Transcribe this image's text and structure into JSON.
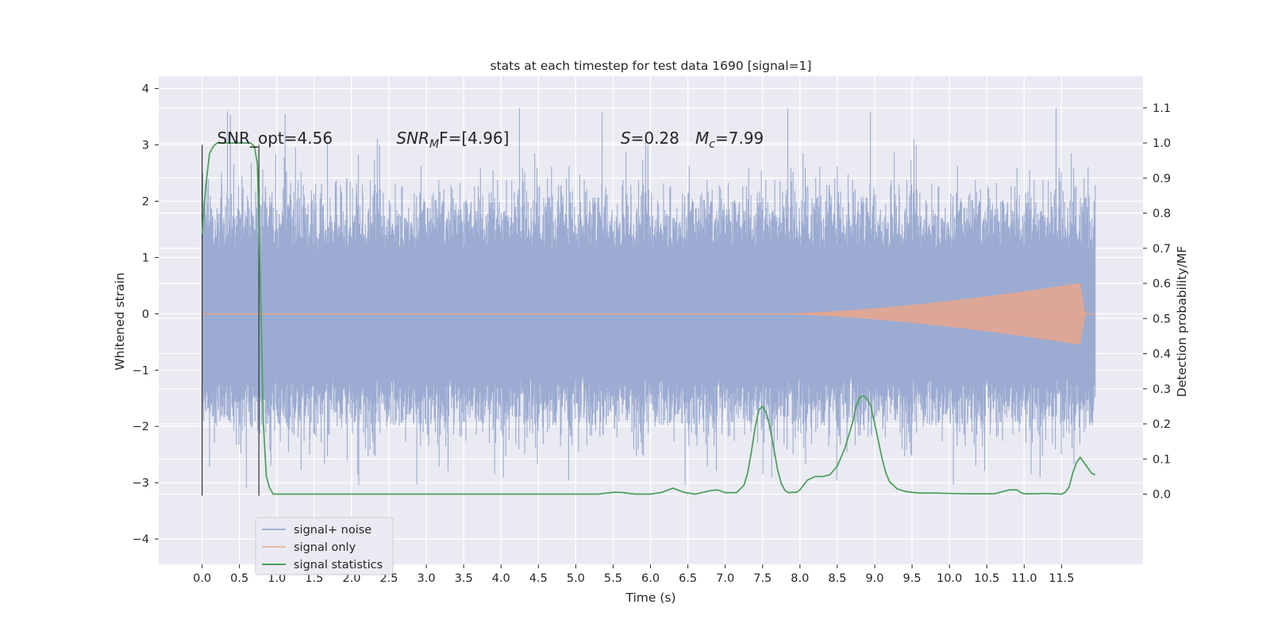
{
  "chart_data": {
    "type": "line",
    "title": "stats at each timestep for test data 1690 [signal=1]",
    "xlabel": "Time (s)",
    "ylabel": "Whitened strain",
    "ylabel_right": "Detection probability/MF",
    "xlim": [
      -0.58,
      12.59
    ],
    "ylim": [
      -4.45,
      4.22
    ],
    "ylim_right": [
      -0.2,
      1.19
    ],
    "x_ticks": [
      "0.0",
      "0.5",
      "1.0",
      "1.5",
      "2.0",
      "2.5",
      "3.0",
      "3.5",
      "4.0",
      "4.5",
      "5.0",
      "5.5",
      "6.0",
      "6.5",
      "7.0",
      "7.5",
      "8.0",
      "8.5",
      "9.0",
      "9.5",
      "10.0",
      "10.5",
      "11.0",
      "11.5"
    ],
    "y_ticks": [
      "4",
      "3",
      "2",
      "1",
      "0",
      "−1",
      "−2",
      "−3",
      "−4"
    ],
    "y_ticks_right": [
      "1.1",
      "1.0",
      "0.9",
      "0.8",
      "0.7",
      "0.6",
      "0.5",
      "0.4",
      "0.3",
      "0.2",
      "0.1",
      "0.0"
    ],
    "grid": true,
    "legend_position": "lower-left",
    "annotations": [
      {
        "text": "SNR_opt=4.56",
        "x": 0.2
      },
      {
        "text": "SNR",
        "sub": "M",
        "tail": "F=[4.96]",
        "italic": true,
        "x": 2.6
      },
      {
        "text": "S",
        "tail": "=0.28",
        "italic": true,
        "x": 5.6
      },
      {
        "text": "M",
        "sub": "c",
        "tail": "=7.99",
        "italic": true,
        "x": 6.6
      }
    ],
    "vlines": [
      0.0,
      0.76
    ],
    "series": [
      {
        "name": "signal+ noise",
        "color": "#8da0cb",
        "kind": "noise",
        "x_range": [
          0.0,
          11.95
        ],
        "typical_amplitude": 1.6,
        "max": 3.86,
        "min": -3.62
      },
      {
        "name": "signal only",
        "color": "#e7a68d",
        "kind": "chirp",
        "x_range": [
          0.0,
          11.95
        ],
        "peak_time": 11.75,
        "peak_amplitude": 0.55
      },
      {
        "name": "signal statistics",
        "color": "#4ea05d",
        "kind": "line",
        "axis": "right",
        "x": [
          0.0,
          0.05,
          0.1,
          0.15,
          0.2,
          0.3,
          0.4,
          0.5,
          0.6,
          0.65,
          0.7,
          0.74,
          0.78,
          0.82,
          0.86,
          0.9,
          0.95,
          1.0,
          1.5,
          2.0,
          3.0,
          4.0,
          5.0,
          5.3,
          5.5,
          5.6,
          5.8,
          6.0,
          6.15,
          6.3,
          6.45,
          6.6,
          6.8,
          6.9,
          7.0,
          7.15,
          7.25,
          7.3,
          7.35,
          7.4,
          7.45,
          7.5,
          7.55,
          7.6,
          7.65,
          7.7,
          7.75,
          7.8,
          7.85,
          7.9,
          7.95,
          8.0,
          8.1,
          8.2,
          8.3,
          8.4,
          8.5,
          8.6,
          8.7,
          8.75,
          8.8,
          8.85,
          8.9,
          8.95,
          9.0,
          9.05,
          9.1,
          9.15,
          9.2,
          9.3,
          9.4,
          9.5,
          9.6,
          9.8,
          10.0,
          10.3,
          10.6,
          10.8,
          10.9,
          10.95,
          11.0,
          11.1,
          11.3,
          11.5,
          11.55,
          11.6,
          11.65,
          11.7,
          11.75,
          11.8,
          11.85,
          11.9,
          11.95
        ],
        "y": [
          0.74,
          0.88,
          0.97,
          0.99,
          1.0,
          1.0,
          1.0,
          1.0,
          1.0,
          1.0,
          0.99,
          0.94,
          0.6,
          0.2,
          0.05,
          0.02,
          0.0,
          0.0,
          0.0,
          0.0,
          0.0,
          0.0,
          0.0,
          0.0,
          0.005,
          0.005,
          0.0,
          0.0,
          0.005,
          0.017,
          0.005,
          0.0,
          0.01,
          0.012,
          0.004,
          0.004,
          0.025,
          0.06,
          0.12,
          0.19,
          0.24,
          0.25,
          0.23,
          0.19,
          0.13,
          0.07,
          0.03,
          0.01,
          0.004,
          0.005,
          0.005,
          0.012,
          0.04,
          0.05,
          0.05,
          0.055,
          0.08,
          0.13,
          0.2,
          0.25,
          0.275,
          0.28,
          0.27,
          0.25,
          0.2,
          0.15,
          0.1,
          0.06,
          0.035,
          0.015,
          0.008,
          0.005,
          0.003,
          0.003,
          0.002,
          0.001,
          0.001,
          0.012,
          0.012,
          0.005,
          0.001,
          0.001,
          0.002,
          0.0,
          0.005,
          0.02,
          0.06,
          0.09,
          0.105,
          0.09,
          0.075,
          0.06,
          0.055
        ]
      }
    ]
  }
}
